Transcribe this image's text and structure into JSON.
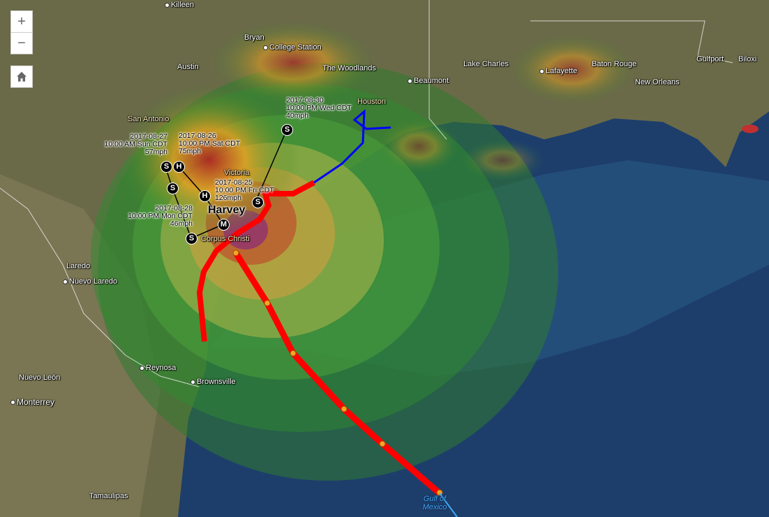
{
  "map": {
    "controls": {
      "zoom_in": "+",
      "zoom_out": "−",
      "home_icon": "home-icon"
    },
    "storm_name": "Harvey",
    "colors": {
      "ocean": "#1d3e6b",
      "land": "#6b6a48",
      "track_observed": "#ff0000",
      "track_post": "#0000ff",
      "forecast_point": "#f5a623"
    },
    "cities": [
      {
        "name": "Killeen"
      },
      {
        "name": "Bryan"
      },
      {
        "name": "College Station"
      },
      {
        "name": "Austin"
      },
      {
        "name": "The Woodlands"
      },
      {
        "name": "Beaumont"
      },
      {
        "name": "Lake Charles"
      },
      {
        "name": "Lafayette"
      },
      {
        "name": "Baton Rouge"
      },
      {
        "name": "New Orleans"
      },
      {
        "name": "Gulfport"
      },
      {
        "name": "Biloxi"
      },
      {
        "name": "Houston"
      },
      {
        "name": "San Antonio"
      },
      {
        "name": "Victoria"
      },
      {
        "name": "Corpus Christi"
      },
      {
        "name": "Laredo"
      },
      {
        "name": "Nuevo Laredo"
      },
      {
        "name": "Reynosa"
      },
      {
        "name": "Brownsville"
      },
      {
        "name": "Nuevo León"
      },
      {
        "name": "Monterrey"
      },
      {
        "name": "Tamaulipas"
      }
    ],
    "water_label": "Gulf of Mexico",
    "track_labels": [
      {
        "date": "2017-08-25",
        "time": "10:00 PM Fri CDT",
        "wind": "126mph"
      },
      {
        "date": "2017-08-26",
        "time": "10:00 PM Sat CDT",
        "wind": "75mph"
      },
      {
        "date": "2017-08-27",
        "time": "10:00 AM Sun CDT",
        "wind": "57mph"
      },
      {
        "date": "2017-08-28",
        "time": "10:00 PM Mon CDT",
        "wind": "46mph"
      },
      {
        "date": "2017-08-30",
        "time": "10:00 PM Wed CDT",
        "wind": "40mph"
      }
    ],
    "markers": [
      {
        "type": "S",
        "category": "tropical-storm"
      },
      {
        "type": "H",
        "category": "hurricane"
      },
      {
        "type": "M",
        "category": "major-hurricane"
      },
      {
        "type": "H",
        "category": "hurricane"
      },
      {
        "type": "S",
        "category": "tropical-storm"
      },
      {
        "type": "S",
        "category": "tropical-storm"
      },
      {
        "type": "S",
        "category": "tropical-storm"
      },
      {
        "type": "S",
        "category": "tropical-storm"
      }
    ]
  }
}
